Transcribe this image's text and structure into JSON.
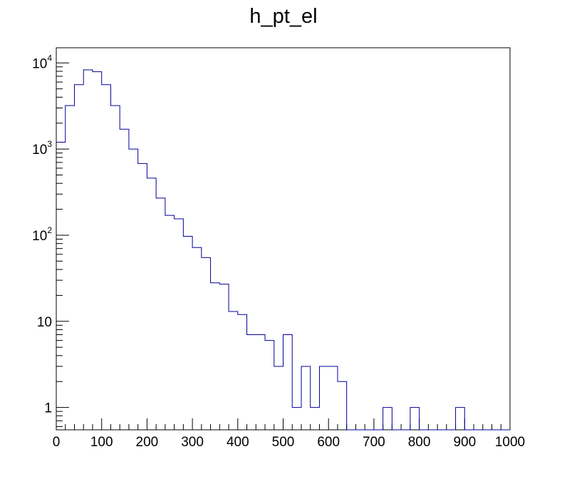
{
  "chart_data": {
    "type": "bar",
    "title": "h_pt_el",
    "xlabel": "",
    "ylabel": "",
    "xlim": [
      0,
      1000
    ],
    "ylim": [
      0.55,
      15000
    ],
    "log_y": true,
    "grid": false,
    "bin_width": 20,
    "line_color": "#000099",
    "x_ticks": [
      "0",
      "100",
      "200",
      "300",
      "400",
      "500",
      "600",
      "700",
      "800",
      "900",
      "1000"
    ],
    "y_ticks": [
      {
        "base": "1",
        "exp": ""
      },
      {
        "base": "10",
        "exp": ""
      },
      {
        "base": "10",
        "exp": "2"
      },
      {
        "base": "10",
        "exp": "3"
      },
      {
        "base": "10",
        "exp": "4"
      }
    ],
    "values": [
      1200,
      3200,
      5600,
      8300,
      7900,
      5600,
      3200,
      1700,
      1000,
      680,
      460,
      270,
      170,
      155,
      97,
      72,
      55,
      28,
      27,
      13,
      12,
      7,
      7,
      6,
      3,
      7,
      1,
      3,
      1,
      3,
      3,
      2,
      0,
      0,
      0,
      0,
      1,
      0,
      0,
      1,
      0,
      0,
      0,
      0,
      1,
      0,
      0,
      0,
      0,
      0
    ]
  }
}
